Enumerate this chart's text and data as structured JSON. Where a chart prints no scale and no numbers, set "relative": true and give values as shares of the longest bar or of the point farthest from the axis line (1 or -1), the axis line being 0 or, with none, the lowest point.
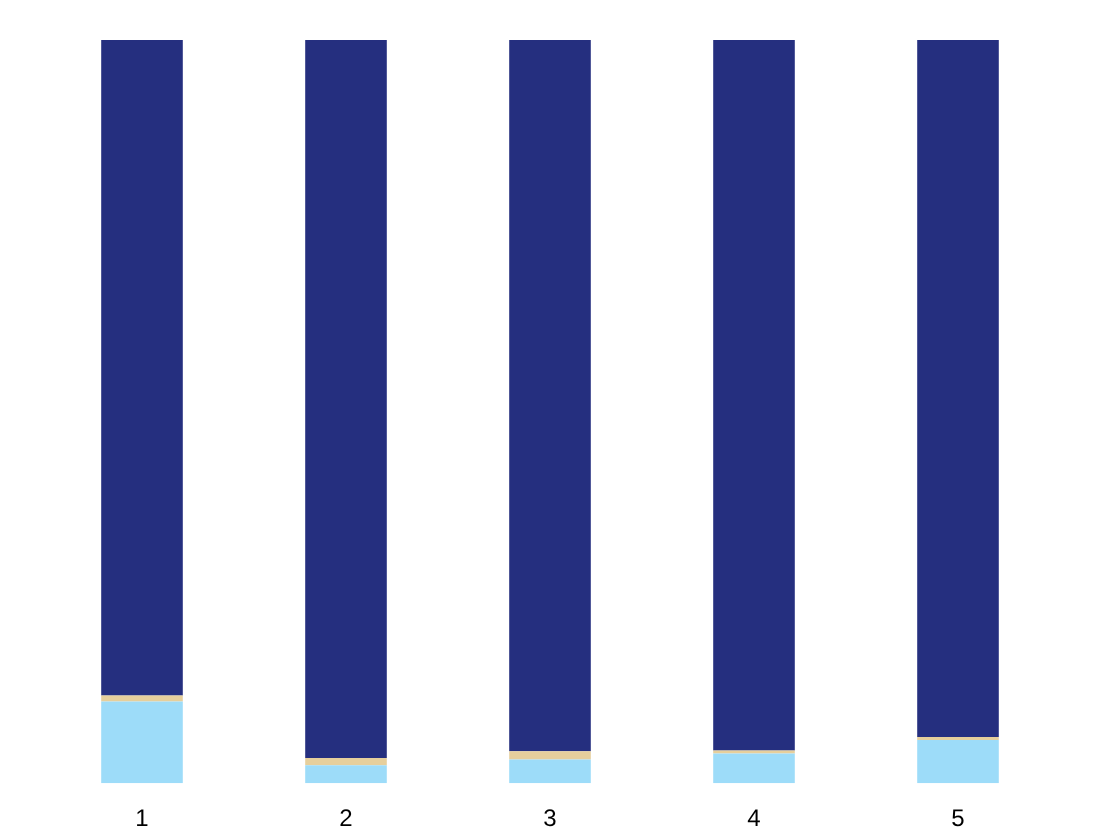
{
  "chart_data": {
    "type": "bar",
    "stacked": true,
    "relative": true,
    "categories": [
      "1",
      "2",
      "3",
      "4",
      "5"
    ],
    "series": [
      {
        "color": "#9ddcf9",
        "values": [
          0.11,
          0.024,
          0.032,
          0.04,
          0.058
        ]
      },
      {
        "color": "#e6cf9c",
        "values": [
          0.008,
          0.01,
          0.011,
          0.004,
          0.004
        ]
      },
      {
        "color": "#252f7f",
        "values": [
          0.882,
          0.966,
          0.957,
          0.956,
          0.938
        ]
      }
    ]
  }
}
